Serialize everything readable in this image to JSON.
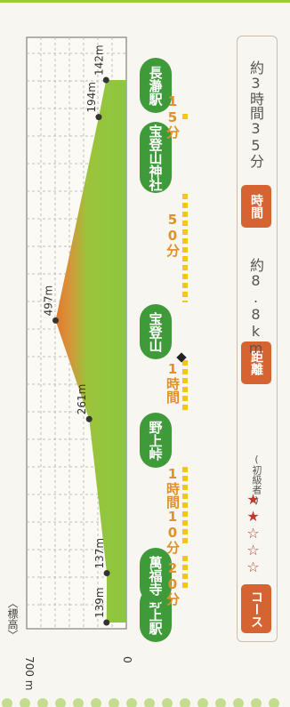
{
  "elevation_label": "〈標高〉",
  "chart_data": {
    "type": "area",
    "title": "",
    "ylabel": "標高",
    "ytick_labels": [
      "0",
      "700 m"
    ],
    "ylim": [
      0,
      700
    ],
    "x_distance_km": [
      0,
      0.8,
      3.3,
      4.9,
      8.2,
      8.8
    ],
    "y_elevation_m": [
      139,
      137,
      261,
      497,
      194,
      142
    ],
    "point_labels": [
      "139m",
      "137m",
      "261m",
      "497m",
      "194m",
      "142m"
    ]
  },
  "stations": [
    "野上駅",
    "萬福寺",
    "野上峠",
    "宝登山",
    "宝登山神社",
    "長瀞駅"
  ],
  "segments": [
    "20分",
    "1時間10分",
    "1時間",
    "50分",
    "15分"
  ],
  "course_tag": "コース",
  "course_stars": "★★☆☆☆",
  "course_level": "(初級者)",
  "distance_tag": "距離",
  "distance_value": "約8.8km",
  "time_tag": "時間",
  "time_value": "約3時間35分",
  "colors": {
    "fill_green": "#8cc63f",
    "peak_orange": "#e07b2c",
    "pill_green": "#3f9a3a",
    "tag_orange": "#d66432",
    "track_yellow": "#f3c61b"
  }
}
